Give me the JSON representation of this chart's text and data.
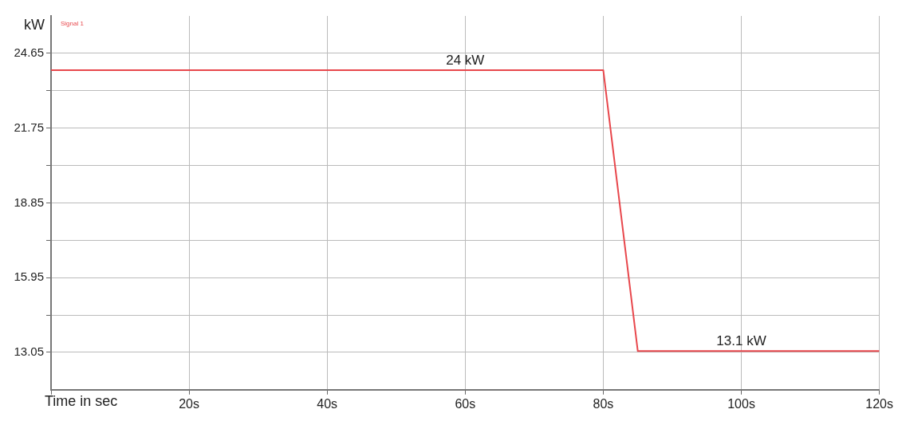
{
  "chart_data": {
    "type": "line",
    "xlabel": "Time in sec",
    "ylabel": "kW",
    "x": [
      0,
      80,
      85,
      120
    ],
    "series": [
      {
        "name": "Signal 1",
        "color": "#e8474c",
        "values": [
          24,
          24,
          13.1,
          13.1
        ]
      }
    ],
    "xlim": [
      0,
      120
    ],
    "xticks": [
      {
        "value": 0,
        "label": null
      },
      {
        "value": 20,
        "label": "20s"
      },
      {
        "value": 40,
        "label": "40s"
      },
      {
        "value": 60,
        "label": "60s"
      },
      {
        "value": 80,
        "label": "80s"
      },
      {
        "value": 100,
        "label": "100s"
      },
      {
        "value": 120,
        "label": "120s"
      }
    ],
    "ylim": [
      11.6,
      26.1
    ],
    "yticks": [
      {
        "value": 13.05,
        "label": "13.05"
      },
      {
        "value": 14.5,
        "label": null
      },
      {
        "value": 15.95,
        "label": "15.95"
      },
      {
        "value": 17.4,
        "label": null
      },
      {
        "value": 18.85,
        "label": "18.85"
      },
      {
        "value": 20.3,
        "label": null
      },
      {
        "value": 21.75,
        "label": "21.75"
      },
      {
        "value": 23.2,
        "label": null
      },
      {
        "value": 24.65,
        "label": "24.65"
      }
    ],
    "annotations": [
      {
        "text": "24 kW",
        "x": 60,
        "y": 24
      },
      {
        "text": "13.1 kW",
        "x": 100,
        "y": 13.1
      }
    ],
    "grid": true,
    "legend": "top left",
    "marker": "none",
    "line_style": "solid"
  }
}
